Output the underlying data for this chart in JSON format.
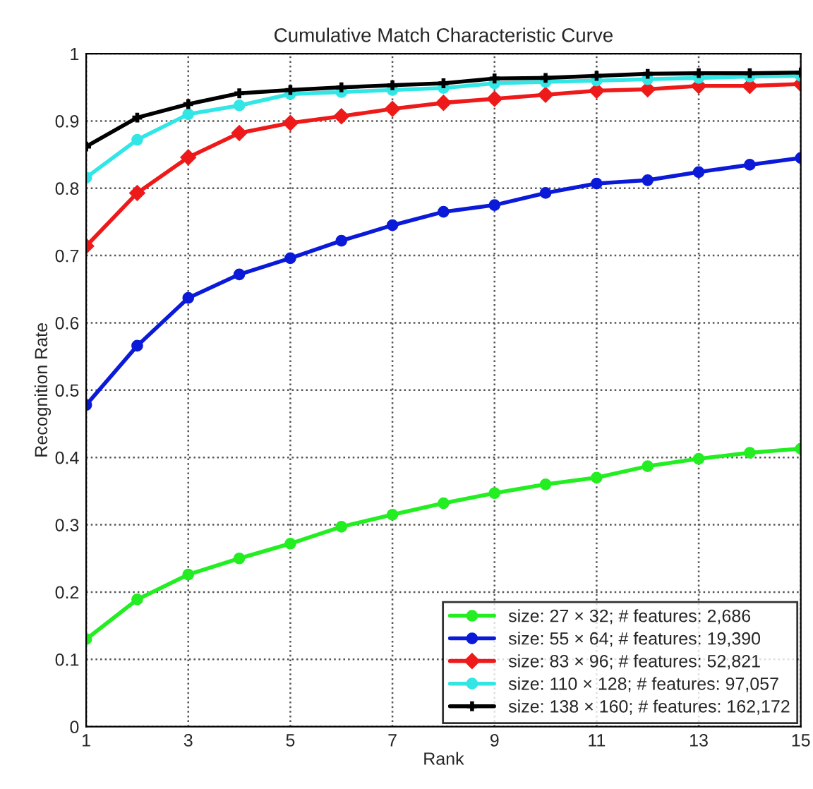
{
  "chart_data": {
    "type": "line",
    "title": "Cumulative Match Characteristic Curve",
    "xlabel": "Rank",
    "ylabel": "Recognition Rate",
    "x": [
      1,
      2,
      3,
      4,
      5,
      6,
      7,
      8,
      9,
      10,
      11,
      12,
      13,
      14,
      15
    ],
    "series": [
      {
        "name": "size: 27 × 32; # features: 2,686",
        "color": "#22ee22",
        "marker": "circle",
        "values": [
          0.13,
          0.189,
          0.226,
          0.25,
          0.272,
          0.297,
          0.315,
          0.332,
          0.347,
          0.36,
          0.37,
          0.387,
          0.398,
          0.407,
          0.413
        ]
      },
      {
        "name": "size: 55 × 64; # features: 19,390",
        "color": "#0a1ad8",
        "marker": "circle",
        "values": [
          0.478,
          0.566,
          0.637,
          0.672,
          0.696,
          0.722,
          0.745,
          0.765,
          0.775,
          0.793,
          0.807,
          0.812,
          0.824,
          0.835,
          0.845
        ]
      },
      {
        "name": "size: 83 × 96; # features: 52,821",
        "color": "#ee1a1a",
        "marker": "diamond",
        "values": [
          0.714,
          0.793,
          0.846,
          0.882,
          0.897,
          0.907,
          0.918,
          0.927,
          0.933,
          0.939,
          0.945,
          0.947,
          0.952,
          0.952,
          0.955
        ]
      },
      {
        "name": "size: 110 × 128; # features: 97,057",
        "color": "#33e6e6",
        "marker": "circle",
        "values": [
          0.816,
          0.872,
          0.91,
          0.923,
          0.94,
          0.943,
          0.946,
          0.949,
          0.956,
          0.958,
          0.96,
          0.962,
          0.964,
          0.966,
          0.967
        ]
      },
      {
        "name": "size: 138 × 160; # features: 162,172",
        "color": "#000000",
        "marker": "cross",
        "values": [
          0.862,
          0.905,
          0.925,
          0.941,
          0.946,
          0.95,
          0.953,
          0.956,
          0.963,
          0.964,
          0.967,
          0.97,
          0.971,
          0.971,
          0.972
        ]
      }
    ],
    "xlim": [
      1,
      15
    ],
    "xticks": [
      1,
      3,
      5,
      7,
      9,
      11,
      13,
      15
    ],
    "ylim": [
      0,
      1
    ],
    "yticks": [
      0,
      0.1,
      0.2,
      0.3,
      0.4,
      0.5,
      0.6,
      0.7,
      0.8,
      0.9,
      1
    ],
    "grid": true,
    "legend": "bottom right",
    "line_style": "solid"
  }
}
